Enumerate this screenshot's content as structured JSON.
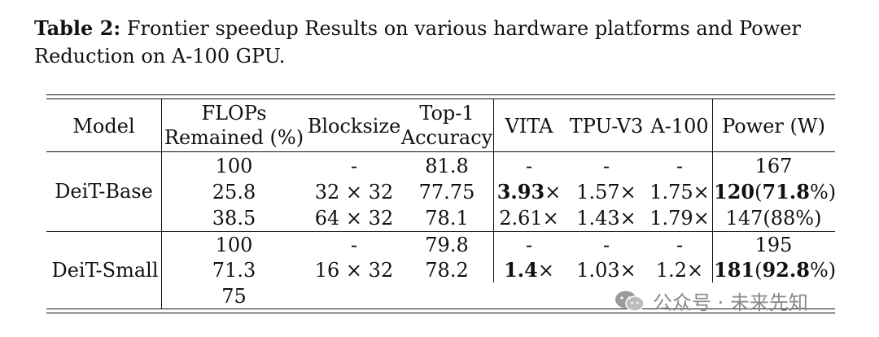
{
  "caption": {
    "label": "Table 2:",
    "text": " Frontier speedup Results on various hardware platforms and Power Reduction on A-100 GPU."
  },
  "headers": {
    "model": "Model",
    "flops_l1": "FLOPs",
    "flops_l2": "Remained (%)",
    "blocksize": "Blocksize",
    "top1_l1": "Top-1",
    "top1_l2": "Accuracy",
    "vita": "VITA",
    "tpu": "TPU-V3",
    "a100": "A-100",
    "power": "Power (W)"
  },
  "groups": [
    {
      "model": "DeiT-Base",
      "rows": [
        {
          "flops": "100",
          "blocksize": "-",
          "top1": "81.8",
          "vita": "-",
          "tpu": "-",
          "a100": "-",
          "power": "167"
        },
        {
          "flops": "25.8",
          "blocksize": "32 × 32",
          "top1": "77.75",
          "vita": "3.93",
          "vita_suffix": "×",
          "tpu": "1.57×",
          "a100": "1.75×",
          "power_bold_a": "120",
          "power_mid": "(",
          "power_bold_b": "71.8",
          "power_end": "%)"
        },
        {
          "flops": "38.5",
          "blocksize": "64 × 32",
          "top1": "78.1",
          "vita": "2.61×",
          "tpu": "1.43×",
          "a100": "1.79×",
          "power": "147(88%)"
        }
      ]
    },
    {
      "model": "DeiT-Small",
      "rows": [
        {
          "flops": "100",
          "blocksize": "-",
          "top1": "79.8",
          "vita": "-",
          "tpu": "-",
          "a100": "-",
          "power": "195"
        },
        {
          "flops": "71.3",
          "blocksize": "16 × 32",
          "top1": "78.2",
          "vita": "1.4",
          "vita_suffix": "×",
          "tpu": "1.03×",
          "a100": "1.2×",
          "power_bold_a": "181",
          "power_mid": "(",
          "power_bold_b": "92.8",
          "power_end": "%)"
        },
        {
          "flops": "75"
        }
      ]
    }
  ],
  "watermark": {
    "text": "公众号 · 未来先知",
    "icon": "wechat-icon"
  }
}
